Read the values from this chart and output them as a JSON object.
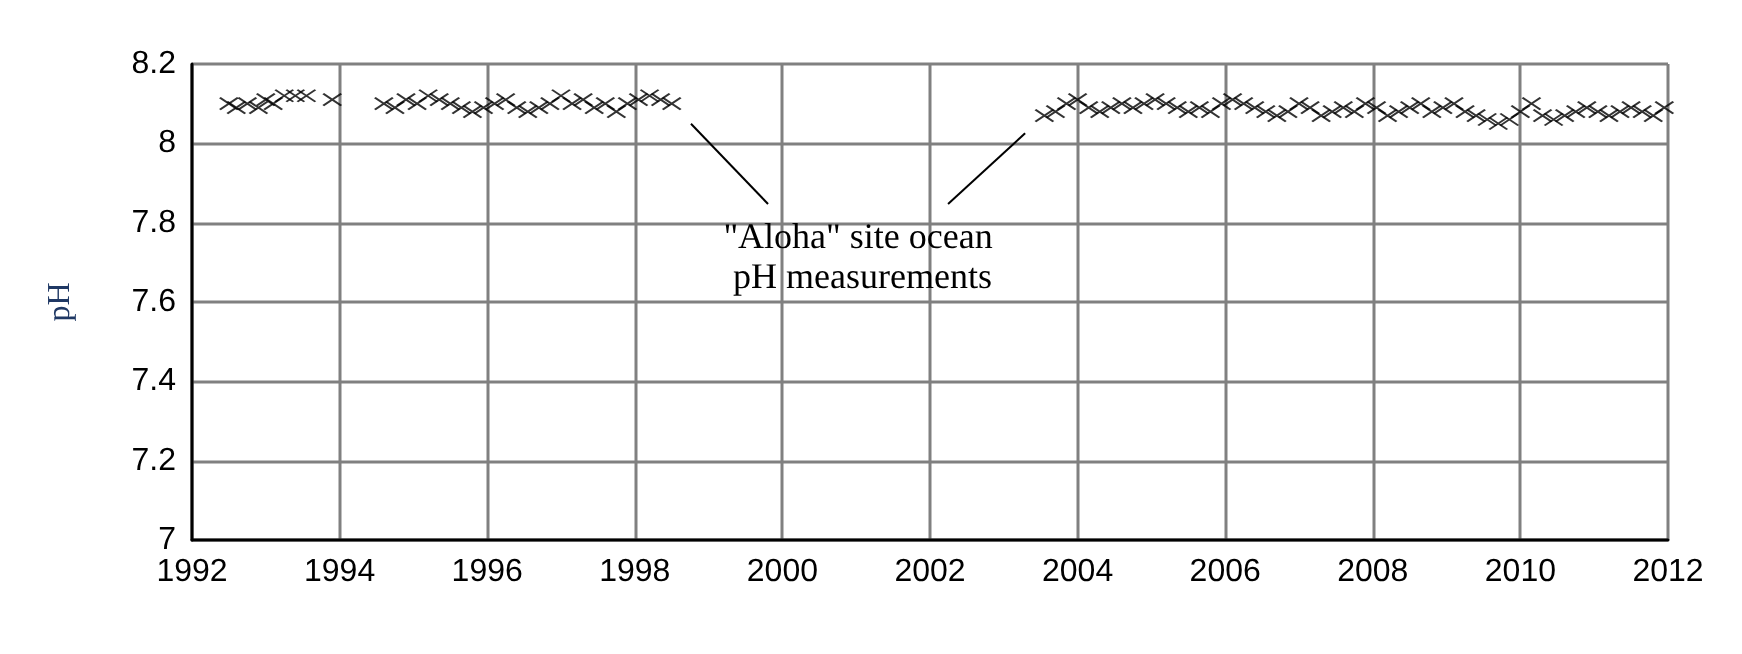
{
  "chart_data": {
    "type": "scatter",
    "ylabel": "pH",
    "marker": "cross",
    "grid": true,
    "xlim": [
      1992,
      2012
    ],
    "xticks": [
      1992,
      1994,
      1996,
      1998,
      2000,
      2002,
      2004,
      2006,
      2008,
      2010,
      2012
    ],
    "ylim": [
      7,
      8.2
    ],
    "yticks": [
      7,
      {
        "value": 7.2,
        "label": "7.2"
      },
      {
        "value": 7.4,
        "label": "7.4"
      },
      {
        "value": 7.6,
        "label": "7.6"
      },
      {
        "value": 7.8,
        "label": "7.8"
      },
      8,
      {
        "value": 8.2,
        "label": "8.2"
      }
    ],
    "annotations": [
      "\"Aloha\" site ocean\n pH measurements"
    ],
    "series": [
      {
        "color": "#000000",
        "x": [
          1992.5,
          1992.6,
          1992.75,
          1992.9,
          1993.0,
          1993.1,
          1993.25,
          1993.4,
          1993.55,
          1993.9,
          1994.6,
          1994.75,
          1994.9,
          1995.05,
          1995.2,
          1995.35,
          1995.5,
          1995.65,
          1995.8,
          1995.95,
          1996.1,
          1996.25,
          1996.4,
          1996.55,
          1996.7,
          1996.85,
          1997.0,
          1997.15,
          1997.3,
          1997.45,
          1997.6,
          1997.75,
          1997.9,
          1998.05,
          1998.2,
          1998.35,
          1998.5,
          2003.55,
          2003.7,
          2003.85,
          2004.0,
          2004.15,
          2004.3,
          2004.45,
          2004.6,
          2004.75,
          2004.9,
          2005.05,
          2005.2,
          2005.35,
          2005.5,
          2005.65,
          2005.8,
          2005.95,
          2006.1,
          2006.25,
          2006.4,
          2006.55,
          2006.7,
          2006.85,
          2007.0,
          2007.15,
          2007.3,
          2007.45,
          2007.6,
          2007.75,
          2007.9,
          2008.05,
          2008.2,
          2008.35,
          2008.5,
          2008.65,
          2008.8,
          2008.95,
          2009.1,
          2009.25,
          2009.4,
          2009.55,
          2009.7,
          2009.85,
          2010.0,
          2010.15,
          2010.3,
          2010.45,
          2010.6,
          2010.75,
          2010.9,
          2011.05,
          2011.2,
          2011.35,
          2011.5,
          2011.65,
          2011.8,
          2011.95
        ],
        "values": [
          8.1,
          8.09,
          8.1,
          8.09,
          8.11,
          8.1,
          8.12,
          8.12,
          8.12,
          8.11,
          8.1,
          8.09,
          8.11,
          8.1,
          8.12,
          8.11,
          8.1,
          8.09,
          8.08,
          8.09,
          8.1,
          8.11,
          8.09,
          8.08,
          8.09,
          8.1,
          8.12,
          8.1,
          8.11,
          8.09,
          8.1,
          8.08,
          8.1,
          8.11,
          8.12,
          8.11,
          8.1,
          8.07,
          8.08,
          8.1,
          8.11,
          8.09,
          8.08,
          8.09,
          8.1,
          8.09,
          8.1,
          8.11,
          8.1,
          8.09,
          8.08,
          8.09,
          8.08,
          8.1,
          8.11,
          8.1,
          8.09,
          8.08,
          8.07,
          8.08,
          8.1,
          8.09,
          8.07,
          8.08,
          8.09,
          8.08,
          8.1,
          8.09,
          8.07,
          8.08,
          8.09,
          8.1,
          8.08,
          8.09,
          8.1,
          8.08,
          8.07,
          8.06,
          8.05,
          8.06,
          8.08,
          8.1,
          8.07,
          8.06,
          8.07,
          8.08,
          8.09,
          8.08,
          8.07,
          8.08,
          8.09,
          8.08,
          8.07,
          8.09
        ]
      }
    ]
  }
}
